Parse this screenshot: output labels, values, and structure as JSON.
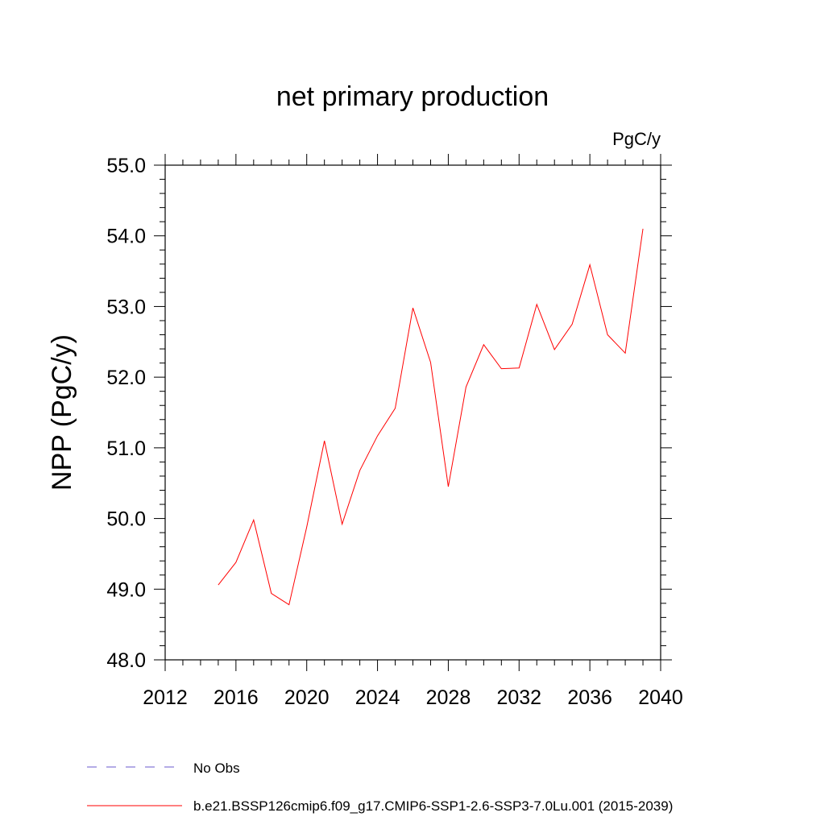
{
  "chart_data": {
    "type": "line",
    "title": "net primary production",
    "units_label": "PgC/y",
    "ylabel": "NPP  (PgC/y)",
    "xlabel": "",
    "xlim": [
      2012,
      2040
    ],
    "ylim": [
      48.0,
      55.0
    ],
    "x_ticks": [
      "2012",
      "2016",
      "2020",
      "2024",
      "2028",
      "2032",
      "2036",
      "2040"
    ],
    "y_ticks": [
      "48.0",
      "49.0",
      "50.0",
      "51.0",
      "52.0",
      "53.0",
      "54.0",
      "55.0"
    ],
    "grid": false,
    "legend_position": "bottom",
    "series": [
      {
        "name": "b.e21.BSSP126cmip6.f09_g17.CMIP6-SSP1-2.6-SSP3-7.0Lu.001 (2015-2039)",
        "color": "#ff0000",
        "line_style": "solid",
        "x": [
          2015,
          2016,
          2017,
          2018,
          2019,
          2020,
          2021,
          2022,
          2023,
          2024,
          2025,
          2026,
          2027,
          2028,
          2029,
          2030,
          2031,
          2032,
          2033,
          2034,
          2035,
          2036,
          2037,
          2038,
          2039
        ],
        "y": [
          49.06,
          49.38,
          49.98,
          48.94,
          48.78,
          49.88,
          51.1,
          49.92,
          50.68,
          51.17,
          51.56,
          52.98,
          52.21,
          50.45,
          51.86,
          52.46,
          52.12,
          52.13,
          53.03,
          52.39,
          52.75,
          53.59,
          52.6,
          52.34,
          54.1
        ]
      }
    ],
    "legend": [
      {
        "label": "No Obs",
        "color": "#6a5acd",
        "line_style": "dashed"
      },
      {
        "label": "b.e21.BSSP126cmip6.f09_g17.CMIP6-SSP1-2.6-SSP3-7.0Lu.001 (2015-2039)",
        "color": "#ff0000",
        "line_style": "solid"
      }
    ]
  }
}
